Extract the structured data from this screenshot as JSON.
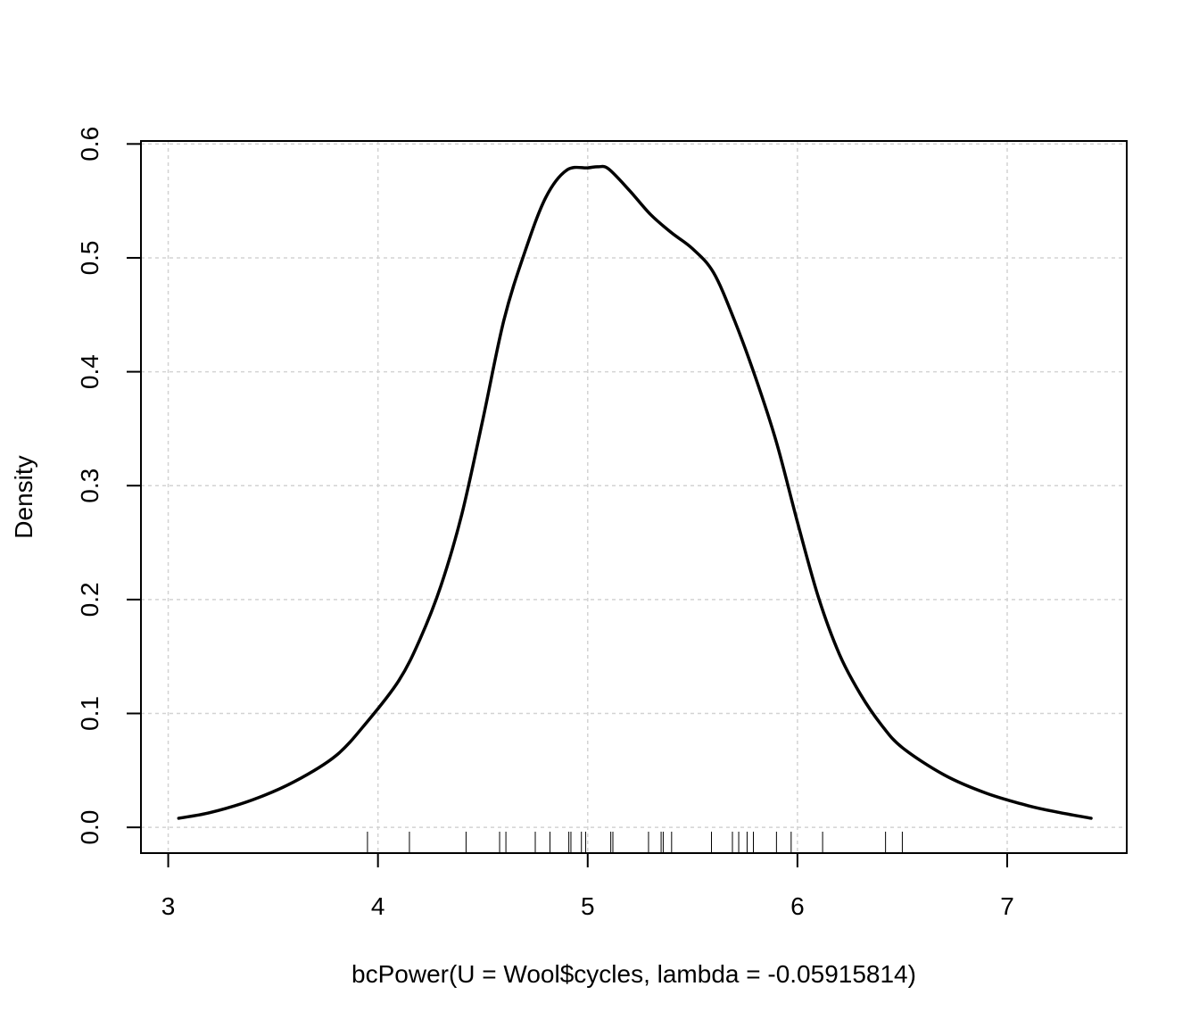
{
  "chart_data": {
    "type": "line",
    "title": "",
    "xlabel": "bcPower(U = Wool$cycles, lambda = -0.05915814)",
    "ylabel": "Density",
    "xlim": [
      2.87,
      7.57
    ],
    "ylim": [
      -0.0226,
      0.6026
    ],
    "x_ticks": [
      "3",
      "4",
      "5",
      "6",
      "7"
    ],
    "y_ticks": [
      "0.0",
      "0.1",
      "0.2",
      "0.3",
      "0.4",
      "0.5",
      "0.6"
    ],
    "grid": true,
    "colors": {
      "line": "#000000",
      "grid": "#d3d3d3",
      "rug": "#000000"
    },
    "series": [
      {
        "x": [
          3.05,
          3.2,
          3.4,
          3.6,
          3.8,
          3.95,
          4.1,
          4.2,
          4.3,
          4.4,
          4.5,
          4.6,
          4.7,
          4.8,
          4.9,
          5.0,
          5.05,
          5.1,
          5.2,
          5.3,
          5.4,
          5.5,
          5.6,
          5.7,
          5.8,
          5.9,
          6.0,
          6.1,
          6.2,
          6.3,
          6.4,
          6.5,
          6.7,
          6.9,
          7.1,
          7.25,
          7.4
        ],
        "y": [
          0.008,
          0.013,
          0.024,
          0.04,
          0.063,
          0.093,
          0.129,
          0.165,
          0.212,
          0.275,
          0.358,
          0.445,
          0.505,
          0.553,
          0.577,
          0.579,
          0.58,
          0.578,
          0.559,
          0.538,
          0.522,
          0.508,
          0.487,
          0.445,
          0.395,
          0.338,
          0.268,
          0.202,
          0.152,
          0.117,
          0.09,
          0.07,
          0.046,
          0.03,
          0.019,
          0.013,
          0.008
        ]
      }
    ],
    "rug": [
      3.95,
      4.15,
      4.42,
      4.58,
      4.61,
      4.75,
      4.82,
      4.91,
      4.92,
      4.97,
      4.99,
      5.11,
      5.12,
      5.29,
      5.35,
      5.36,
      5.4,
      5.59,
      5.69,
      5.72,
      5.76,
      5.79,
      5.9,
      5.97,
      6.12,
      6.42,
      6.5
    ]
  }
}
